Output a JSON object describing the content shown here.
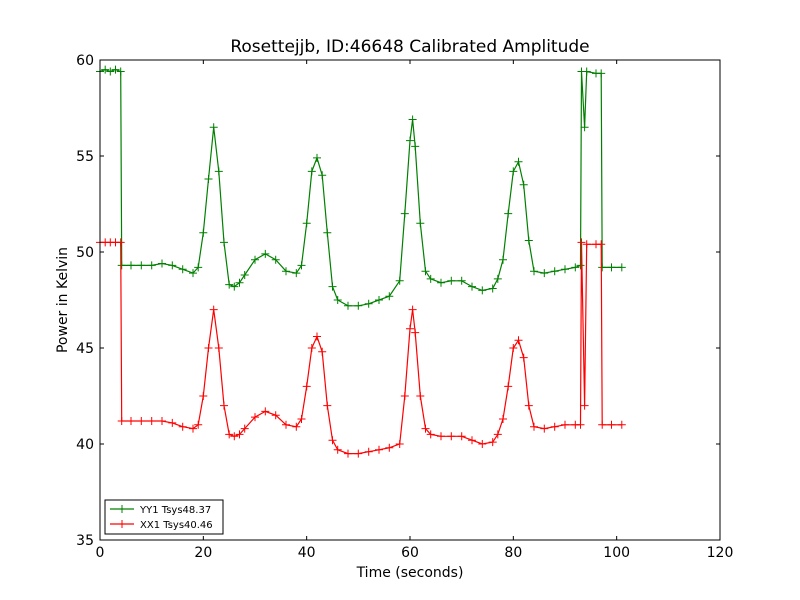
{
  "chart_data": {
    "type": "line",
    "title": "Rosettejjb, ID:46648 Calibrated Amplitude",
    "xlabel": "Time (seconds)",
    "ylabel": "Power in Kelvin",
    "xlim": [
      0,
      120
    ],
    "ylim": [
      35,
      60
    ],
    "xticks": [
      0,
      20,
      40,
      60,
      80,
      100,
      120
    ],
    "yticks": [
      35,
      40,
      45,
      50,
      55,
      60
    ],
    "grid": false,
    "legend_position": "lower-left",
    "marker": "+",
    "series": [
      {
        "name": "YY1 Tsys48.37",
        "color": "#008000",
        "points": [
          [
            0,
            59.4
          ],
          [
            1,
            59.5
          ],
          [
            2,
            59.4
          ],
          [
            3,
            59.5
          ],
          [
            4,
            59.4
          ],
          [
            4.2,
            49.3
          ],
          [
            6,
            49.3
          ],
          [
            8,
            49.3
          ],
          [
            10,
            49.3
          ],
          [
            12,
            49.4
          ],
          [
            14,
            49.3
          ],
          [
            16,
            49.1
          ],
          [
            18,
            48.9
          ],
          [
            19,
            49.2
          ],
          [
            20,
            51.0
          ],
          [
            21,
            53.8
          ],
          [
            22,
            56.5
          ],
          [
            23,
            54.2
          ],
          [
            24,
            50.5
          ],
          [
            25,
            48.3
          ],
          [
            26,
            48.2
          ],
          [
            27,
            48.4
          ],
          [
            28,
            48.8
          ],
          [
            30,
            49.6
          ],
          [
            32,
            49.9
          ],
          [
            34,
            49.6
          ],
          [
            36,
            49.0
          ],
          [
            38,
            48.9
          ],
          [
            39,
            49.3
          ],
          [
            40,
            51.5
          ],
          [
            41,
            54.2
          ],
          [
            42,
            54.9
          ],
          [
            43,
            54.0
          ],
          [
            44,
            51.0
          ],
          [
            45,
            48.2
          ],
          [
            46,
            47.5
          ],
          [
            48,
            47.2
          ],
          [
            50,
            47.2
          ],
          [
            52,
            47.3
          ],
          [
            54,
            47.5
          ],
          [
            56,
            47.7
          ],
          [
            58,
            48.5
          ],
          [
            59,
            52.0
          ],
          [
            60,
            55.8
          ],
          [
            60.5,
            56.9
          ],
          [
            61,
            55.5
          ],
          [
            62,
            51.5
          ],
          [
            63,
            49.0
          ],
          [
            64,
            48.6
          ],
          [
            66,
            48.4
          ],
          [
            68,
            48.5
          ],
          [
            70,
            48.5
          ],
          [
            72,
            48.2
          ],
          [
            74,
            48.0
          ],
          [
            76,
            48.1
          ],
          [
            77,
            48.6
          ],
          [
            78,
            49.6
          ],
          [
            79,
            52.0
          ],
          [
            80,
            54.2
          ],
          [
            81,
            54.7
          ],
          [
            82,
            53.5
          ],
          [
            83,
            50.6
          ],
          [
            84,
            49.0
          ],
          [
            86,
            48.9
          ],
          [
            88,
            49.0
          ],
          [
            90,
            49.1
          ],
          [
            92,
            49.2
          ],
          [
            93,
            49.3
          ],
          [
            93.2,
            59.4
          ],
          [
            93.8,
            56.5
          ],
          [
            94.2,
            59.4
          ],
          [
            96,
            59.3
          ],
          [
            97,
            59.3
          ],
          [
            97.2,
            49.2
          ],
          [
            99,
            49.2
          ],
          [
            101,
            49.2
          ]
        ]
      },
      {
        "name": "XX1 Tsys40.46",
        "color": "#ff0000",
        "points": [
          [
            0,
            50.5
          ],
          [
            1,
            50.5
          ],
          [
            2,
            50.5
          ],
          [
            3,
            50.5
          ],
          [
            4,
            50.5
          ],
          [
            4.2,
            41.2
          ],
          [
            6,
            41.2
          ],
          [
            8,
            41.2
          ],
          [
            10,
            41.2
          ],
          [
            12,
            41.2
          ],
          [
            14,
            41.1
          ],
          [
            16,
            40.9
          ],
          [
            18,
            40.8
          ],
          [
            19,
            41.0
          ],
          [
            20,
            42.5
          ],
          [
            21,
            45.0
          ],
          [
            22,
            47.0
          ],
          [
            23,
            45.0
          ],
          [
            24,
            42.0
          ],
          [
            25,
            40.5
          ],
          [
            26,
            40.4
          ],
          [
            27,
            40.5
          ],
          [
            28,
            40.8
          ],
          [
            30,
            41.4
          ],
          [
            32,
            41.7
          ],
          [
            34,
            41.5
          ],
          [
            36,
            41.0
          ],
          [
            38,
            40.9
          ],
          [
            39,
            41.3
          ],
          [
            40,
            43.0
          ],
          [
            41,
            45.0
          ],
          [
            42,
            45.6
          ],
          [
            43,
            44.8
          ],
          [
            44,
            42.0
          ],
          [
            45,
            40.2
          ],
          [
            46,
            39.7
          ],
          [
            48,
            39.5
          ],
          [
            50,
            39.5
          ],
          [
            52,
            39.6
          ],
          [
            54,
            39.7
          ],
          [
            56,
            39.8
          ],
          [
            58,
            40.0
          ],
          [
            59,
            42.5
          ],
          [
            60,
            46.0
          ],
          [
            60.5,
            47.0
          ],
          [
            61,
            45.8
          ],
          [
            62,
            42.5
          ],
          [
            63,
            40.8
          ],
          [
            64,
            40.5
          ],
          [
            66,
            40.4
          ],
          [
            68,
            40.4
          ],
          [
            70,
            40.4
          ],
          [
            72,
            40.2
          ],
          [
            74,
            40.0
          ],
          [
            76,
            40.1
          ],
          [
            77,
            40.5
          ],
          [
            78,
            41.3
          ],
          [
            79,
            43.0
          ],
          [
            80,
            45.0
          ],
          [
            81,
            45.4
          ],
          [
            82,
            44.5
          ],
          [
            83,
            42.0
          ],
          [
            84,
            40.9
          ],
          [
            86,
            40.8
          ],
          [
            88,
            40.9
          ],
          [
            90,
            41.0
          ],
          [
            92,
            41.0
          ],
          [
            93,
            41.0
          ],
          [
            93.2,
            50.5
          ],
          [
            93.8,
            42.0
          ],
          [
            94.2,
            50.4
          ],
          [
            96,
            50.4
          ],
          [
            97,
            50.4
          ],
          [
            97.2,
            41.0
          ],
          [
            99,
            41.0
          ],
          [
            101,
            41.0
          ]
        ]
      }
    ]
  }
}
